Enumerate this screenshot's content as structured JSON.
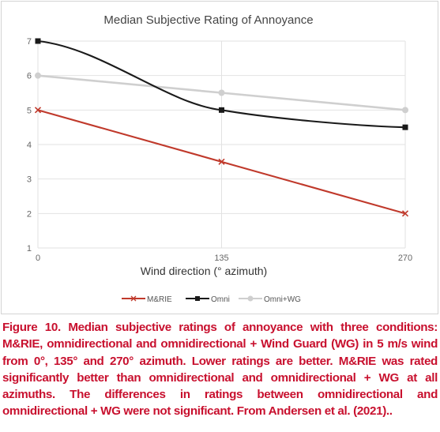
{
  "chart_data": {
    "type": "line",
    "title": "Median Subjective Rating of Annoyance",
    "xlabel": "Wind direction (° azimuth)",
    "ylabel": "",
    "x": [
      0,
      135,
      270
    ],
    "x_tick_labels": [
      "0",
      "135",
      "270"
    ],
    "xlim": [
      0,
      270
    ],
    "ylim": [
      1,
      7
    ],
    "y_ticks": [
      1,
      2,
      3,
      4,
      5,
      6,
      7
    ],
    "grid": "horizontal",
    "legend_position": "bottom",
    "series": [
      {
        "name": "M&RIE",
        "values": [
          5,
          3.5,
          2
        ],
        "color": "#c0392b",
        "marker": "x",
        "smooth": false
      },
      {
        "name": "Omni",
        "values": [
          7,
          5,
          4.5
        ],
        "color": "#1a1a1a",
        "marker": "square",
        "smooth": true
      },
      {
        "name": "Omni+WG",
        "values": [
          6,
          5.5,
          5
        ],
        "color": "#cfcfcf",
        "marker": "circle",
        "smooth": false
      }
    ]
  },
  "caption": "Figure 10. Median subjective ratings of annoyance with three conditions: M&RIE, omnidirectional and omnidirectional + Wind Guard (WG) in 5 m/s wind from 0°, 135° and 270° azimuth. Lower ratings are better. M&RIE was rated significantly better than omnidirectional and omnidirectional + WG at all azimuths. The differences in ratings between omnidirectional and omnidirectional + WG were not significant. From Andersen et al. (2021).."
}
